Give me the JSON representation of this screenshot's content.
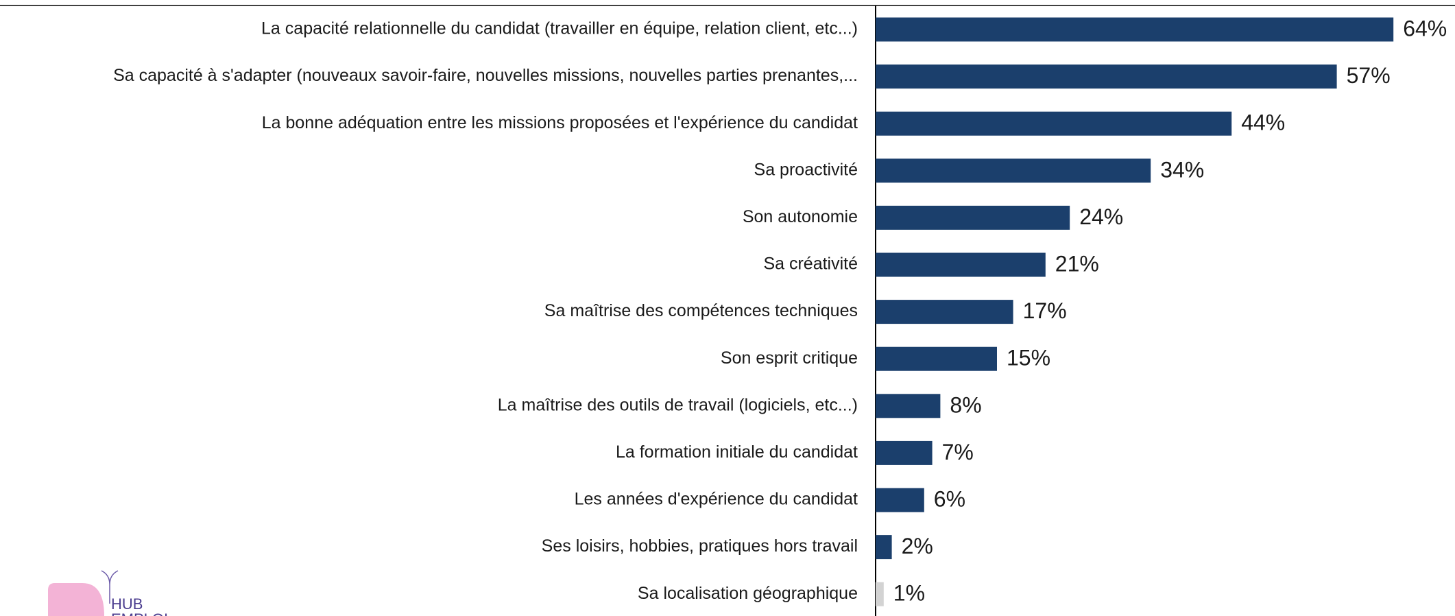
{
  "chart_data": {
    "type": "hbar",
    "categories": [
      "La capacité relationnelle du candidat (travailler en équipe, relation client, etc...)",
      "Sa capacité à s'adapter (nouveaux savoir-faire, nouvelles missions, nouvelles parties prenantes,...",
      "La bonne adéquation entre les missions proposées et l'expérience du candidat",
      "Sa proactivité",
      "Son autonomie",
      "Sa créativité",
      "Sa maîtrise des compétences techniques",
      "Son esprit critique",
      "La maîtrise des outils de travail (logiciels, etc...)",
      "La formation initiale du candidat",
      "Les années d'expérience du candidat",
      "Ses loisirs, hobbies, pratiques hors travail",
      "Sa localisation géographique"
    ],
    "values": [
      64,
      57,
      44,
      34,
      24,
      21,
      17,
      15,
      8,
      7,
      6,
      2,
      1
    ],
    "value_labels": [
      "64%",
      "57%",
      "44%",
      "34%",
      "24%",
      "21%",
      "17%",
      "15%",
      "8%",
      "7%",
      "6%",
      "2%",
      "1%"
    ],
    "colors": [
      "#1b3f6c",
      "#1b3f6c",
      "#1b3f6c",
      "#1b3f6c",
      "#1b3f6c",
      "#1b3f6c",
      "#1b3f6c",
      "#1b3f6c",
      "#1b3f6c",
      "#1b3f6c",
      "#1b3f6c",
      "#1b3f6c",
      "#d3d3d3"
    ],
    "xlim": [
      0,
      70
    ]
  },
  "logo": {
    "line1": "HUB",
    "line2": "EMPLOI"
  }
}
